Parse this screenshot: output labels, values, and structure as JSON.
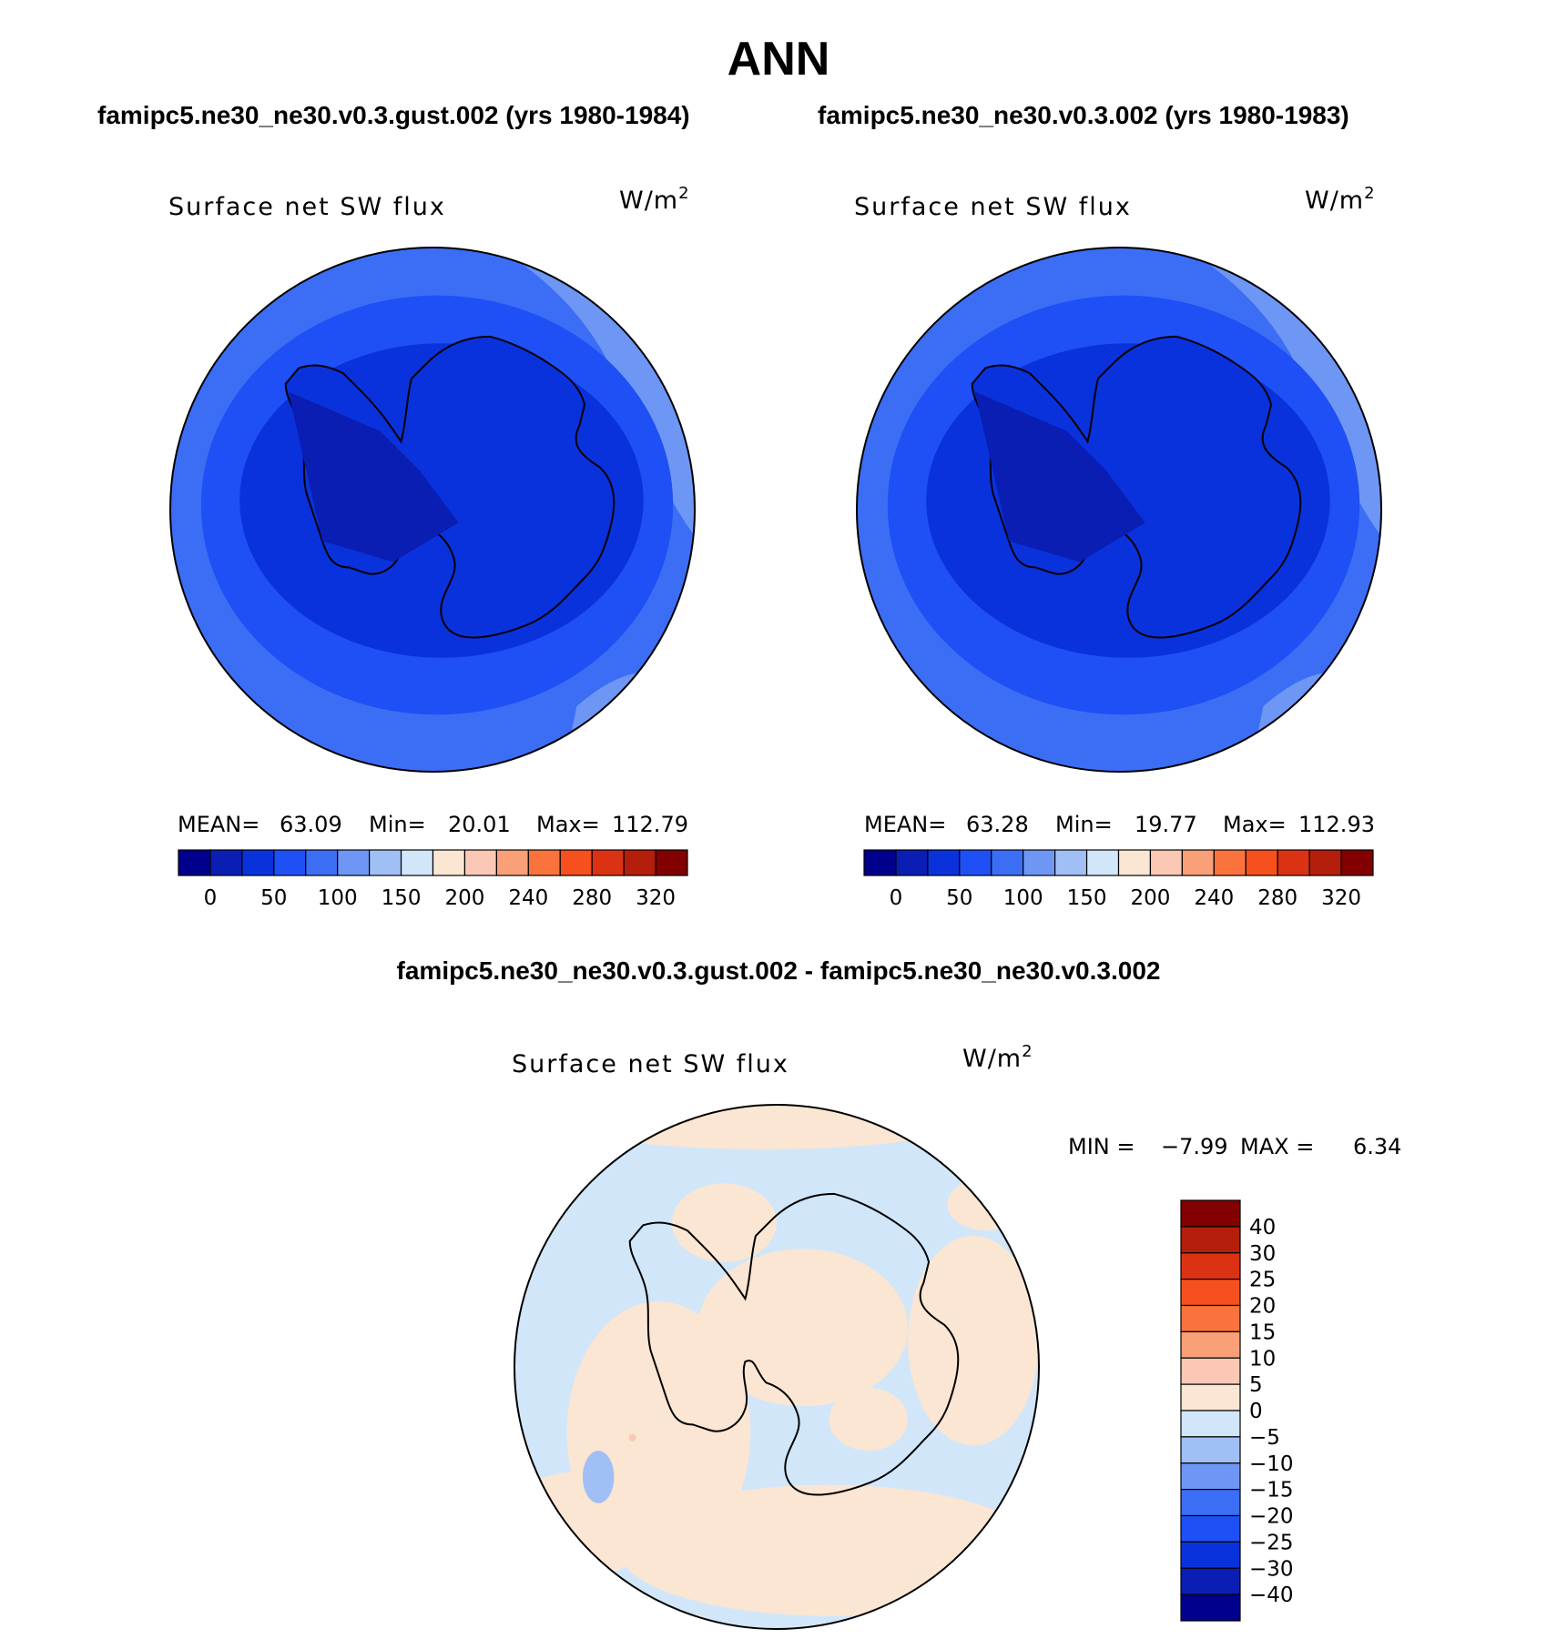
{
  "title": "ANN",
  "top_left": {
    "case_title": "famipc5.ne30_ne30.v0.3.gust.002 (yrs 1980-1984)",
    "variable": "Surface net SW flux",
    "units": "W/m",
    "units_sup": "2",
    "stats": {
      "mean_label": "MEAN=",
      "mean": "63.09",
      "min_label": "Min=",
      "min": "20.01",
      "max_label": "Max=",
      "max": "112.79"
    }
  },
  "top_right": {
    "case_title": "famipc5.ne30_ne30.v0.3.002 (yrs 1980-1983)",
    "variable": "Surface net SW flux",
    "units": "W/m",
    "units_sup": "2",
    "stats": {
      "mean_label": "MEAN=",
      "mean": "63.28",
      "min_label": "Min=",
      "min": "19.77",
      "max_label": "Max=",
      "max": "112.93"
    }
  },
  "bottom": {
    "case_title": "famipc5.ne30_ne30.v0.3.gust.002 - famipc5.ne30_ne30.v0.3.002",
    "variable": "Surface net SW flux",
    "units": "W/m",
    "units_sup": "2",
    "stats": {
      "min_label": "MIN =",
      "min": "−7.99",
      "max_label": "MAX =",
      "max": "6.34"
    }
  },
  "colorbar_top": {
    "colors": [
      "#00008c",
      "#0a1eb4",
      "#0a32dc",
      "#1e50f5",
      "#3c6ef5",
      "#6e96f5",
      "#a0c0f5",
      "#d2e6fa",
      "#fae6d2",
      "#fac8b4",
      "#faa078",
      "#fa733c",
      "#f5501e",
      "#dc3214",
      "#b41e0a",
      "#820000"
    ],
    "labels": [
      "0",
      "50",
      "100",
      "150",
      "200",
      "240",
      "280",
      "320"
    ]
  },
  "colorbar_diff": {
    "colors": [
      "#00008c",
      "#0a1eb4",
      "#0a32dc",
      "#1e50f5",
      "#3c6ef5",
      "#6e96f5",
      "#a0c0f5",
      "#d2e6fa",
      "#fae6d2",
      "#fac8b4",
      "#faa078",
      "#fa733c",
      "#f5501e",
      "#dc3214",
      "#b41e0a",
      "#820000"
    ],
    "labels": [
      "40",
      "30",
      "25",
      "20",
      "15",
      "10",
      "5",
      "0",
      "−5",
      "−10",
      "−15",
      "−20",
      "−25",
      "−30",
      "−40"
    ]
  },
  "map_colors": {
    "ocean_outer": "#3c6ef5",
    "ocean_mid": "#1e50f5",
    "ocean_light": "#6e96f5",
    "land_dark": "#0a1eb4",
    "land": "#0a32dc",
    "diff_neg": "#d2e6fa",
    "diff_pos": "#fae6d2",
    "diff_blue": "#a0c0f5",
    "diff_spot": "#fac8b4"
  }
}
